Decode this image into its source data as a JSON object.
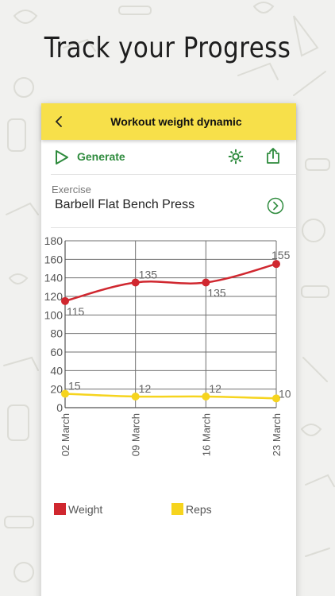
{
  "promo": {
    "title": "Track your Progress"
  },
  "app_bar": {
    "title": "Workout weight dynamic",
    "back_icon": "chevron-left-icon"
  },
  "toolbar": {
    "generate_label": "Generate",
    "play_icon": "play-icon",
    "settings_icon": "gear-icon",
    "share_icon": "share-icon",
    "accent_color": "#2e8b3d"
  },
  "exercise": {
    "label": "Exercise",
    "name": "Barbell Flat Bench Press",
    "arrow_icon": "chevron-right-circle-icon"
  },
  "chart_data": {
    "type": "line",
    "x": [
      "02 March",
      "09 March",
      "16 March",
      "23 March"
    ],
    "ylim": [
      0,
      180
    ],
    "yticks": [
      0,
      20,
      40,
      60,
      80,
      100,
      120,
      140,
      160,
      180
    ],
    "grid": true,
    "legend_placement": "bottom",
    "series": [
      {
        "name": "Weight",
        "color": "#d0272f",
        "values": [
          115,
          135,
          135,
          155
        ]
      },
      {
        "name": "Reps",
        "color": "#f6d41e",
        "values": [
          15,
          12,
          12,
          10
        ]
      }
    ]
  }
}
